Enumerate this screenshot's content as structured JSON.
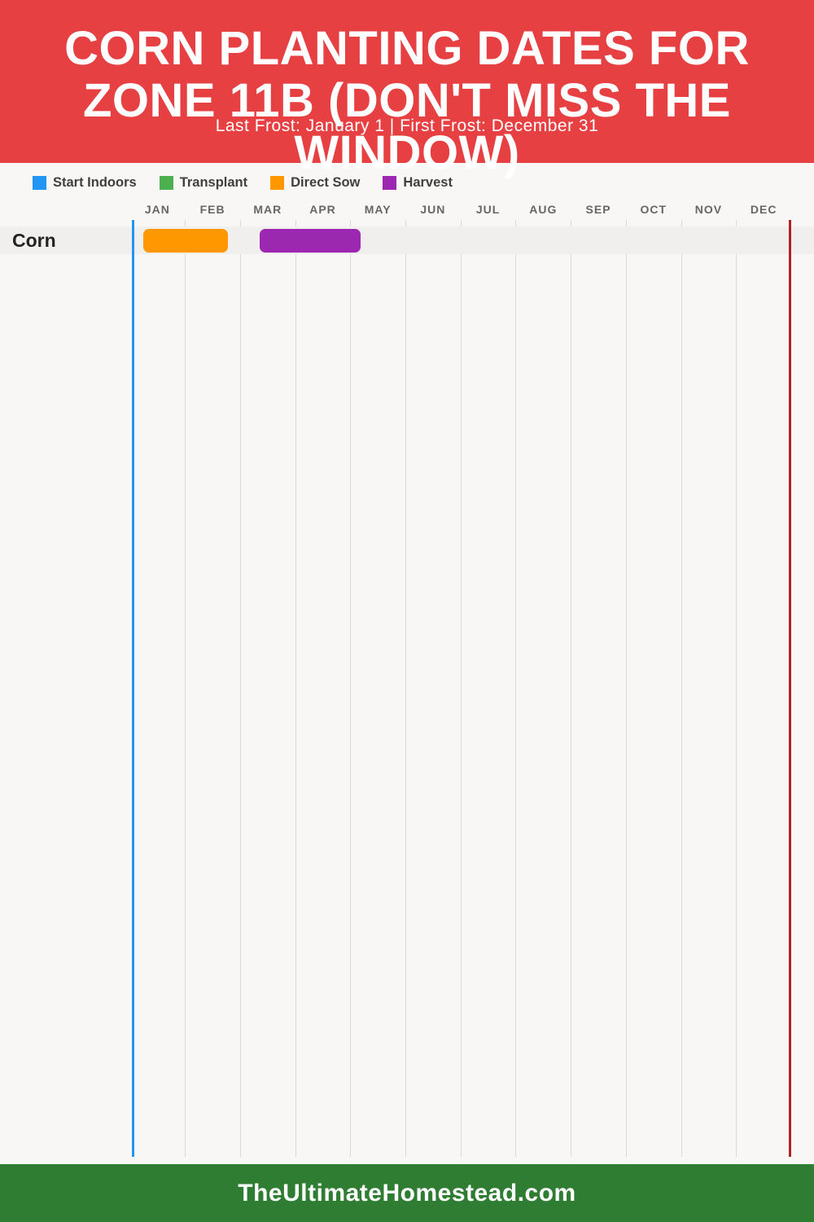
{
  "header": {
    "bg_color": "#E74043",
    "title": "CORN PLANTING DATES FOR ZONE 11B (DON'T MISS THE WINDOW)",
    "title_lines": [
      "CORN PLANTING DATES FOR",
      "ZONE 11B (DON'T MISS THE",
      "WINDOW)"
    ],
    "subtitle": "Last Frost: January 1 | First Frost: December 31"
  },
  "legend": {
    "position": "top-left",
    "items": [
      {
        "label": "Start Indoors",
        "color": "#2196F3"
      },
      {
        "label": "Transplant",
        "color": "#4CAF50"
      },
      {
        "label": "Direct Sow",
        "color": "#FF9800"
      },
      {
        "label": "Harvest",
        "color": "#9C27B0"
      }
    ]
  },
  "chart_data": {
    "type": "gantt",
    "title": "Corn Planting Dates for Zone 11B (Don't Miss the Window)",
    "subtitle": "Last Frost: January 1 | First Frost: December 31",
    "x_axis": {
      "categories": [
        "JAN",
        "FEB",
        "MAR",
        "APR",
        "MAY",
        "JUN",
        "JUL",
        "AUG",
        "SEP",
        "OCT",
        "NOV",
        "DEC"
      ],
      "range_months": [
        0,
        12
      ],
      "grid": true
    },
    "rows": [
      {
        "label": "Corn",
        "bars": [
          {
            "series": "Direct Sow",
            "color": "#FF9800",
            "start_month": 0.25,
            "end_month": 1.78,
            "approx_start": "Jan 8",
            "approx_end": "Feb 23"
          },
          {
            "series": "Harvest",
            "color": "#9C27B0",
            "start_month": 2.35,
            "end_month": 4.19,
            "approx_start": "Mar 11",
            "approx_end": "May 6"
          }
        ]
      }
    ],
    "reference_lines": [
      {
        "name": "last-frost",
        "label": "Last Frost: January 1",
        "color": "#2196F3",
        "month": 0.06
      },
      {
        "name": "first-frost",
        "label": "First Frost: December 31",
        "color": "#B22222",
        "month": 11.98
      }
    ],
    "legend_entries": [
      "Start Indoors",
      "Transplant",
      "Direct Sow",
      "Harvest"
    ],
    "legend_position": "top-left"
  },
  "footer": {
    "bg_color": "#2E7D32",
    "text": "TheUltimateHomestead.com"
  }
}
